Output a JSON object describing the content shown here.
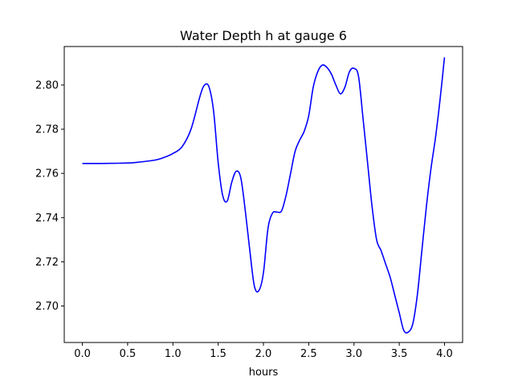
{
  "chart_data": {
    "type": "line",
    "title": "Water Depth h at gauge 6",
    "xlabel": "hours",
    "ylabel": "",
    "xlim": [
      -0.2,
      4.2
    ],
    "ylim": [
      2.6835,
      2.8174
    ],
    "xticks": [
      0.0,
      0.5,
      1.0,
      1.5,
      2.0,
      2.5,
      3.0,
      3.5,
      4.0
    ],
    "xtick_labels": [
      "0.0",
      "0.5",
      "1.0",
      "1.5",
      "2.0",
      "2.5",
      "3.0",
      "3.5",
      "4.0"
    ],
    "yticks": [
      2.7,
      2.72,
      2.74,
      2.76,
      2.78,
      2.8
    ],
    "ytick_labels": [
      "2.70",
      "2.72",
      "2.74",
      "2.76",
      "2.78",
      "2.80"
    ],
    "grid": false,
    "legend": "none",
    "series": [
      {
        "color": "#0000ff",
        "x": [
          0.0,
          0.2,
          0.4,
          0.5,
          0.6,
          0.8,
          0.9,
          1.0,
          1.1,
          1.2,
          1.3,
          1.35,
          1.4,
          1.45,
          1.5,
          1.55,
          1.6,
          1.65,
          1.7,
          1.75,
          1.8,
          1.85,
          1.9,
          1.95,
          2.0,
          2.05,
          2.1,
          2.15,
          2.2,
          2.25,
          2.3,
          2.35,
          2.4,
          2.45,
          2.5,
          2.55,
          2.6,
          2.65,
          2.7,
          2.75,
          2.8,
          2.85,
          2.9,
          2.95,
          3.0,
          3.05,
          3.1,
          3.15,
          3.2,
          3.25,
          3.3,
          3.35,
          3.4,
          3.45,
          3.5,
          3.55,
          3.6,
          3.65,
          3.7,
          3.75,
          3.8,
          3.85,
          3.9,
          3.95,
          4.0
        ],
        "y": [
          2.7645,
          2.7645,
          2.7646,
          2.7647,
          2.765,
          2.766,
          2.7672,
          2.769,
          2.772,
          2.78,
          2.795,
          2.8,
          2.799,
          2.788,
          2.765,
          2.75,
          2.7475,
          2.756,
          2.761,
          2.758,
          2.743,
          2.725,
          2.709,
          2.707,
          2.715,
          2.735,
          2.742,
          2.7425,
          2.743,
          2.75,
          2.76,
          2.77,
          2.775,
          2.779,
          2.786,
          2.799,
          2.806,
          2.809,
          2.808,
          2.805,
          2.8,
          2.796,
          2.799,
          2.806,
          2.8075,
          2.804,
          2.785,
          2.765,
          2.745,
          2.73,
          2.725,
          2.719,
          2.713,
          2.705,
          2.697,
          2.689,
          2.6882,
          2.692,
          2.705,
          2.725,
          2.745,
          2.762,
          2.776,
          2.793,
          2.8125
        ]
      }
    ]
  }
}
